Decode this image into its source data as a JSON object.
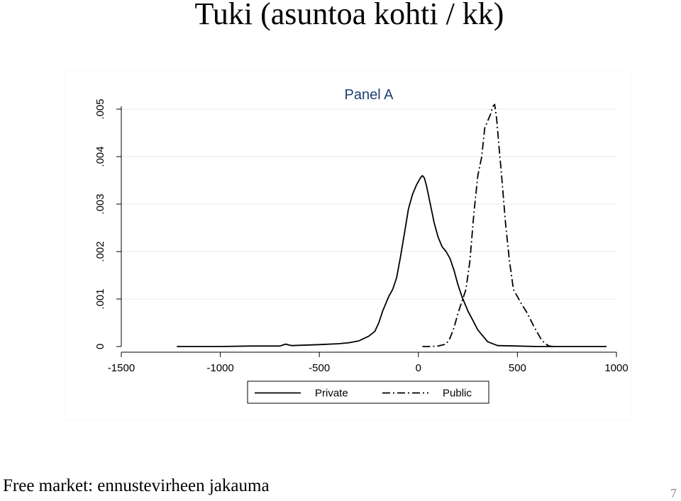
{
  "slide": {
    "title": "Tuki (asuntoa kohti / kk)",
    "caption": "Free market: ennustevirheen jakauma",
    "page_number": "7"
  },
  "chart_data": {
    "type": "line",
    "title": "Panel A",
    "xlim": [
      -1500,
      1000
    ],
    "ylim": [
      0,
      0.005
    ],
    "x_ticks": [
      -1500,
      -1000,
      -500,
      0,
      500,
      1000
    ],
    "x_tick_labels": [
      "-1500",
      "-1000",
      "-500",
      "0",
      "500",
      "1000"
    ],
    "y_ticks": [
      0,
      0.001,
      0.002,
      0.003,
      0.004,
      0.005
    ],
    "y_tick_labels": [
      "0",
      ".001",
      ".002",
      ".003",
      ".004",
      ".005"
    ],
    "grid": "horizontal",
    "legend_position": "bottom",
    "title_color": "#1f3f6e",
    "series": [
      {
        "name": "Private",
        "style": "solid",
        "color": "#000000",
        "x": [
          -1220,
          -1000,
          -850,
          -700,
          -670,
          -640,
          -500,
          -400,
          -350,
          -300,
          -250,
          -220,
          -200,
          -180,
          -150,
          -130,
          -110,
          -90,
          -70,
          -50,
          -30,
          -10,
          10,
          20,
          30,
          40,
          60,
          80,
          100,
          120,
          140,
          160,
          180,
          200,
          220,
          250,
          300,
          350,
          400,
          500,
          600,
          700,
          800,
          950
        ],
        "y": [
          0,
          0,
          1e-05,
          1e-05,
          5e-05,
          2e-05,
          4e-05,
          6e-05,
          8e-05,
          0.00012,
          0.00022,
          0.00032,
          0.0005,
          0.00075,
          0.00105,
          0.0012,
          0.00145,
          0.0019,
          0.0024,
          0.0029,
          0.0032,
          0.0034,
          0.00355,
          0.0036,
          0.00355,
          0.0034,
          0.003,
          0.0026,
          0.0023,
          0.0021,
          0.002,
          0.00185,
          0.0016,
          0.0013,
          0.00105,
          0.00075,
          0.00035,
          0.0001,
          2e-05,
          1e-05,
          0,
          0,
          0,
          0
        ]
      },
      {
        "name": "Public",
        "style": "dashdot",
        "color": "#000000",
        "x": [
          20,
          60,
          100,
          140,
          160,
          180,
          200,
          220,
          240,
          260,
          280,
          300,
          320,
          335,
          345,
          355,
          365,
          375,
          385,
          395,
          405,
          420,
          440,
          460,
          480,
          500,
          520,
          550,
          580,
          600,
          620,
          640,
          660,
          680
        ],
        "y": [
          0,
          0,
          1e-05,
          5e-05,
          0.00018,
          0.0004,
          0.0007,
          0.00095,
          0.0012,
          0.0018,
          0.0028,
          0.0036,
          0.004,
          0.0046,
          0.0047,
          0.0048,
          0.0049,
          0.00505,
          0.0051,
          0.0048,
          0.0043,
          0.0036,
          0.0026,
          0.0018,
          0.0012,
          0.00105,
          0.0009,
          0.0007,
          0.00045,
          0.0003,
          0.00015,
          6e-05,
          1e-05,
          0
        ]
      }
    ]
  }
}
